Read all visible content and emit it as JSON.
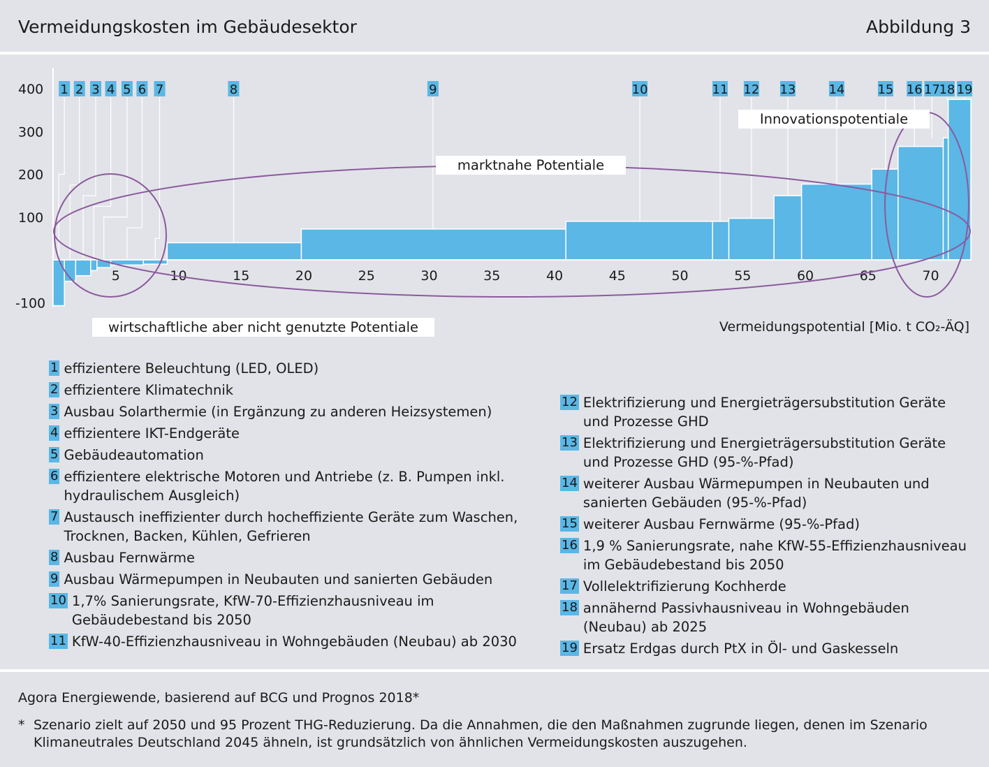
{
  "header": {
    "title": "Vermeidungskosten im Gebäudesektor",
    "figure": "Abbildung 3"
  },
  "chart_data": {
    "type": "bar",
    "subtype": "marginal-abatement-cost-curve",
    "xlabel": "Vermeidungspotential [Mio. t CO₂-ÄQ]",
    "ylabel": "",
    "xlim": [
      0,
      73.2
    ],
    "ylim": [
      -110,
      400
    ],
    "x_ticks": [
      5,
      10,
      15,
      20,
      25,
      30,
      35,
      40,
      45,
      50,
      55,
      60,
      65,
      70
    ],
    "y_ticks": [
      400,
      300,
      200,
      100,
      -100
    ],
    "bar_color": "#5ab7e6",
    "bars": [
      {
        "id": "1",
        "x0": 0,
        "x1": 0.9,
        "value": -107
      },
      {
        "id": "2",
        "x0": 0.9,
        "x1": 1.8,
        "value": -50
      },
      {
        "id": "3",
        "x0": 1.8,
        "x1": 3.0,
        "value": -37
      },
      {
        "id": "4",
        "x0": 3.0,
        "x1": 3.5,
        "value": -25
      },
      {
        "id": "5",
        "x0": 3.5,
        "x1": 4.6,
        "value": -18
      },
      {
        "id": "6",
        "x0": 4.6,
        "x1": 7.2,
        "value": -12
      },
      {
        "id": "7",
        "x0": 7.2,
        "x1": 9.1,
        "value": -10
      },
      {
        "id": "8",
        "x0": 9.1,
        "x1": 19.8,
        "value": 40
      },
      {
        "id": "9",
        "x0": 19.8,
        "x1": 40.9,
        "value": 72
      },
      {
        "id": "10",
        "x0": 40.9,
        "x1": 52.6,
        "value": 90
      },
      {
        "id": "11",
        "x0": 52.6,
        "x1": 53.9,
        "value": 90
      },
      {
        "id": "12",
        "x0": 53.9,
        "x1": 57.5,
        "value": 97
      },
      {
        "id": "13",
        "x0": 57.5,
        "x1": 59.7,
        "value": 150
      },
      {
        "id": "14",
        "x0": 59.7,
        "x1": 65.3,
        "value": 177
      },
      {
        "id": "15",
        "x0": 65.3,
        "x1": 67.4,
        "value": 212
      },
      {
        "id": "16",
        "x0": 67.4,
        "x1": 71.0,
        "value": 265
      },
      {
        "id": "17",
        "x0": 71.0,
        "x1": 71.4,
        "value": 285
      },
      {
        "id": "18",
        "x0": 71.4,
        "x1": 73.2,
        "value": 375
      },
      {
        "id": "19",
        "x0": 71.4,
        "x1": 73.2,
        "value": 375
      }
    ],
    "callouts": [
      {
        "id": "1",
        "x": 0.9
      },
      {
        "id": "2",
        "x": 2.1
      },
      {
        "id": "3",
        "x": 3.4
      },
      {
        "id": "4",
        "x": 4.6
      },
      {
        "id": "5",
        "x": 5.9
      },
      {
        "id": "6",
        "x": 7.1
      },
      {
        "id": "7",
        "x": 8.5
      },
      {
        "id": "8",
        "x": 14.4
      },
      {
        "id": "9",
        "x": 30.3
      },
      {
        "id": "10",
        "x": 46.8
      },
      {
        "id": "11",
        "x": 53.2
      },
      {
        "id": "12",
        "x": 55.7
      },
      {
        "id": "13",
        "x": 58.6
      },
      {
        "id": "14",
        "x": 62.5
      },
      {
        "id": "15",
        "x": 66.4
      },
      {
        "id": "16",
        "x": 68.7
      },
      {
        "id": "17",
        "x": 70.1
      },
      {
        "id": "18",
        "x": 71.3
      },
      {
        "id": "19",
        "x": 72.7
      }
    ],
    "annotations": [
      "wirtschaftliche aber nicht genutzte Potentiale",
      "marktnahe Potentiale",
      "Innovationspotentiale"
    ],
    "grid": false
  },
  "legend_left": [
    {
      "num": "1",
      "text": "effizientere Beleuchtung (LED, OLED)"
    },
    {
      "num": "2",
      "text": "effizientere Klimatechnik"
    },
    {
      "num": "3",
      "text": "Ausbau Solarthermie (in Ergänzung zu anderen Heizsystemen)"
    },
    {
      "num": "4",
      "text": "effizientere IKT-Endgeräte"
    },
    {
      "num": "5",
      "text": "Gebäudeautomation"
    },
    {
      "num": "6",
      "text": "effizientere elektrische Motoren und Antriebe (z. B. Pumpen inkl. hydraulischem Ausgleich)"
    },
    {
      "num": "7",
      "text": "Austausch ineffizienter durch hocheffiziente Geräte zum Waschen, Trocknen, Backen, Kühlen, Gefrieren"
    },
    {
      "num": "8",
      "text": "Ausbau Fernwärme"
    },
    {
      "num": "9",
      "text": "Ausbau Wärmepumpen in Neubauten und sanierten Gebäuden"
    },
    {
      "num": "10",
      "text": "1,7% Sanierungsrate, KfW-70-Effizienzhausniveau im Gebäudebestand bis 2050"
    },
    {
      "num": "11",
      "text": "KfW-40-Effizienzhausniveau in Wohngebäuden (Neubau) ab 2030"
    }
  ],
  "legend_right": [
    {
      "num": "12",
      "text": "Elektrifizierung und Energieträgersubstitution Geräte und Prozesse GHD"
    },
    {
      "num": "13",
      "text": "Elektrifizierung und Energieträgersubstitution Geräte und Prozesse GHD (95-%-Pfad)"
    },
    {
      "num": "14",
      "text": "weiterer Ausbau Wärmepumpen in Neubauten und sanierten Gebäuden (95-%-Pfad)"
    },
    {
      "num": "15",
      "text": "weiterer Ausbau Fernwärme (95-%-Pfad)"
    },
    {
      "num": "16",
      "text": "1,9 % Sanierungsrate, nahe KfW-55-Effizienzhausniveau im Gebäudebestand bis 2050"
    },
    {
      "num": "17",
      "text": "Vollelektrifizierung Kochherde"
    },
    {
      "num": "18",
      "text": "annähernd Passivhausniveau in Wohngebäuden (Neubau) ab 2025"
    },
    {
      "num": "19",
      "text": "Ersatz Erdgas durch PtX in Öl- und Gaskesseln"
    }
  ],
  "source": "Agora Energiewende, basierend auf BCG und Prognos 2018*",
  "footnote": {
    "star": "*",
    "text": "Szenario zielt auf 2050 und 95 Prozent THG-Reduzierung. Da die Annahmen, die den Maßnahmen zugrunde liegen, denen im Szenario Klimaneutrales Deutschland 2045 ähneln, ist grundsätzlich von ähnlichen Vermeidungskosten auszugehen."
  }
}
